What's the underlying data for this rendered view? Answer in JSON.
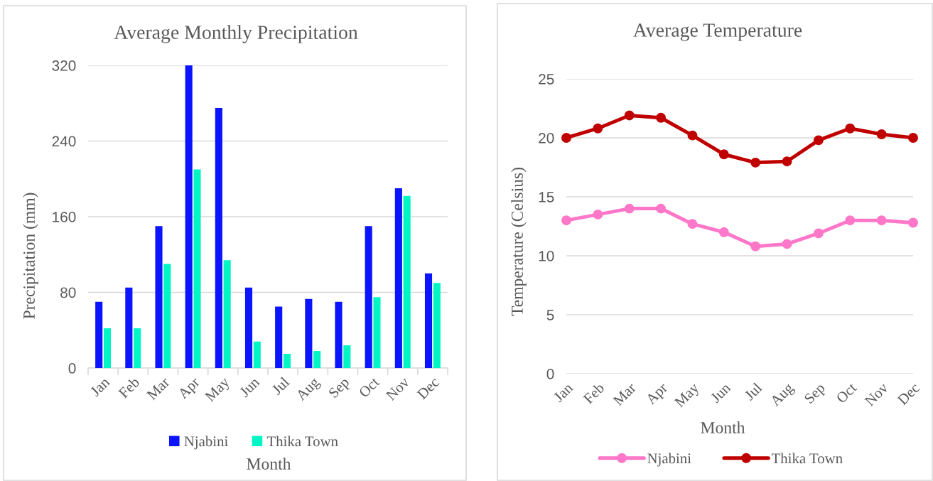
{
  "chart_data": [
    {
      "type": "bar",
      "title": "Average Monthly Precipitation",
      "xlabel": "Month",
      "ylabel": "Precipitation (mm)",
      "categories": [
        "Jan",
        "Feb",
        "Mar",
        "Apr",
        "May",
        "Jun",
        "Jul",
        "Aug",
        "Sep",
        "Oct",
        "Nov",
        "Dec"
      ],
      "series": [
        {
          "name": "Njabini",
          "color": "#0a14ff",
          "values": [
            70,
            85,
            150,
            320,
            275,
            85,
            65,
            73,
            70,
            150,
            190,
            100
          ]
        },
        {
          "name": "Thika Town",
          "color": "#00f5c4",
          "values": [
            42,
            42,
            110,
            210,
            114,
            28,
            15,
            18,
            24,
            75,
            182,
            90
          ]
        }
      ],
      "ylim": [
        0,
        320
      ],
      "yticks": [
        0,
        80,
        160,
        240,
        320
      ],
      "grid": "y",
      "legend": "bottom"
    },
    {
      "type": "line",
      "title": "Average Temperature",
      "xlabel": "Month",
      "ylabel": "Temperature (Celsius)",
      "categories": [
        "Jan",
        "Feb",
        "Mar",
        "Apr",
        "May",
        "Jun",
        "Jul",
        "Aug",
        "Sep",
        "Oct",
        "Nov",
        "Dec"
      ],
      "series": [
        {
          "name": "Njabini",
          "color": "#ff77c8",
          "values": [
            13,
            13.5,
            14,
            14,
            12.7,
            12,
            10.8,
            11,
            11.9,
            13,
            13,
            12.8
          ]
        },
        {
          "name": "Thika Town",
          "color": "#c00000",
          "values": [
            20,
            20.8,
            21.9,
            21.7,
            20.2,
            18.6,
            17.9,
            18,
            19.8,
            20.8,
            20.3,
            20
          ]
        }
      ],
      "ylim": [
        0,
        25
      ],
      "yticks": [
        0,
        5,
        10,
        15,
        20,
        25
      ],
      "grid": "y",
      "legend": "bottom",
      "marker": "circle",
      "line_style": "solid"
    }
  ]
}
